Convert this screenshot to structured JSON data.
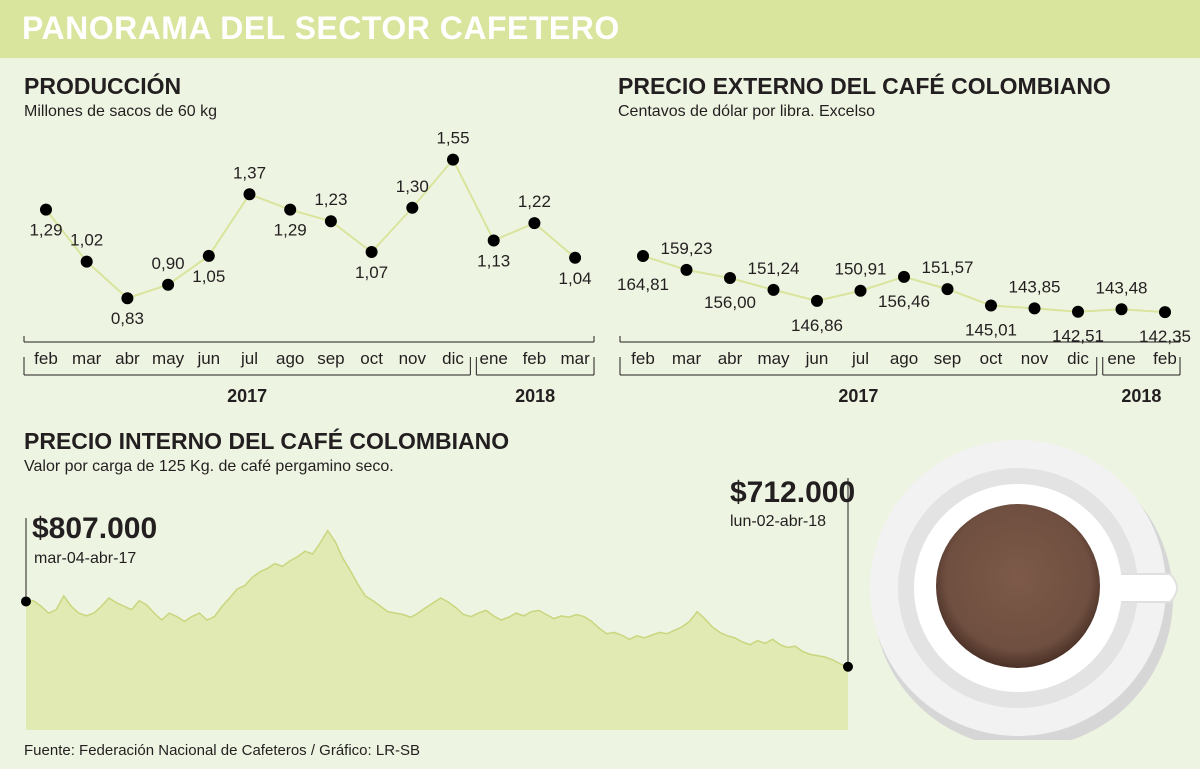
{
  "title": "PANORAMA DEL SECTOR CAFETERO",
  "source": "Fuente: Federación Nacional de Cafeteros  / Gráfico: LR-SB",
  "chart_data": [
    {
      "type": "line",
      "title": "PRODUCCIÓN",
      "subtitle": "Millones de sacos de 60 kg",
      "x": [
        "feb",
        "mar",
        "abr",
        "may",
        "jun",
        "jul",
        "ago",
        "sep",
        "oct",
        "nov",
        "dic",
        "ene",
        "feb",
        "mar"
      ],
      "values": [
        1.29,
        1.02,
        0.83,
        0.9,
        1.05,
        1.37,
        1.29,
        1.23,
        1.07,
        1.3,
        1.55,
        1.13,
        1.22,
        1.04
      ],
      "labels": [
        "1,29",
        "1,02",
        "0,83",
        "0,90",
        "1,05",
        "1,37",
        "1,29",
        "1,23",
        "1,07",
        "1,30",
        "1,55",
        "1,13",
        "1,22",
        "1,04"
      ],
      "years": [
        {
          "label": "2017",
          "count": 11
        },
        {
          "label": "2018",
          "count": 3
        }
      ],
      "ylim": [
        0.8,
        1.6
      ],
      "grid": false,
      "legend": "none",
      "line_color": "#d9e49c",
      "marker_color": "#000000"
    },
    {
      "type": "line",
      "title": "PRECIO EXTERNO DEL CAFÉ COLOMBIANO",
      "subtitle": "Centavos de dólar por libra. Excelso",
      "x": [
        "feb",
        "mar",
        "abr",
        "may",
        "jun",
        "jul",
        "ago",
        "sep",
        "oct",
        "nov",
        "dic",
        "ene",
        "feb"
      ],
      "values": [
        164.81,
        159.23,
        156.0,
        151.24,
        146.86,
        150.91,
        156.46,
        151.57,
        145.01,
        143.85,
        142.51,
        143.48,
        142.35
      ],
      "labels": [
        "164,81",
        "159,23",
        "156,00",
        "151,24",
        "146,86",
        "150,91",
        "156,46",
        "151,57",
        "145,01",
        "143,85",
        "142,51",
        "143,48",
        "142,35"
      ],
      "years": [
        {
          "label": "2017",
          "count": 11
        },
        {
          "label": "2018",
          "count": 2
        }
      ],
      "ylim": [
        120,
        200
      ],
      "grid": false,
      "legend": "none",
      "line_color": "#d9e49c",
      "marker_color": "#000000"
    },
    {
      "type": "area",
      "title": "PRECIO INTERNO DEL CAFÉ COLOMBIANO",
      "subtitle": "Valor por carga de 125 Kg. de café pergamino seco.",
      "x_start": "mar-04-abr-17",
      "x_end": "lun-02-abr-18",
      "start": {
        "value": 807000,
        "label": "$807.000",
        "date": "mar-04-abr-17"
      },
      "end": {
        "value": 712000,
        "label": "$712.000",
        "date": "lun-02-abr-18"
      },
      "values": [
        807000,
        808000,
        800000,
        790000,
        795000,
        815000,
        800000,
        790000,
        786000,
        790000,
        800000,
        812000,
        805000,
        800000,
        795000,
        808000,
        802000,
        790000,
        780000,
        790000,
        785000,
        778000,
        785000,
        790000,
        780000,
        785000,
        800000,
        812000,
        825000,
        830000,
        842000,
        850000,
        855000,
        862000,
        858000,
        866000,
        872000,
        880000,
        876000,
        892000,
        910000,
        894000,
        870000,
        852000,
        832000,
        815000,
        808000,
        800000,
        792000,
        790000,
        788000,
        784000,
        790000,
        798000,
        805000,
        812000,
        806000,
        798000,
        788000,
        785000,
        790000,
        794000,
        786000,
        780000,
        784000,
        790000,
        786000,
        792000,
        794000,
        788000,
        782000,
        786000,
        784000,
        788000,
        785000,
        778000,
        768000,
        760000,
        762000,
        758000,
        752000,
        757000,
        754000,
        758000,
        762000,
        760000,
        765000,
        770000,
        778000,
        792000,
        782000,
        770000,
        762000,
        757000,
        754000,
        748000,
        744000,
        750000,
        746000,
        752000,
        744000,
        740000,
        742000,
        734000,
        730000,
        728000,
        726000,
        722000,
        716000,
        712000
      ],
      "ylim": [
        620000,
        940000
      ],
      "grid": false,
      "legend": "none",
      "fill_color": "#e1eab3",
      "line_color": "#c9d67e"
    }
  ]
}
